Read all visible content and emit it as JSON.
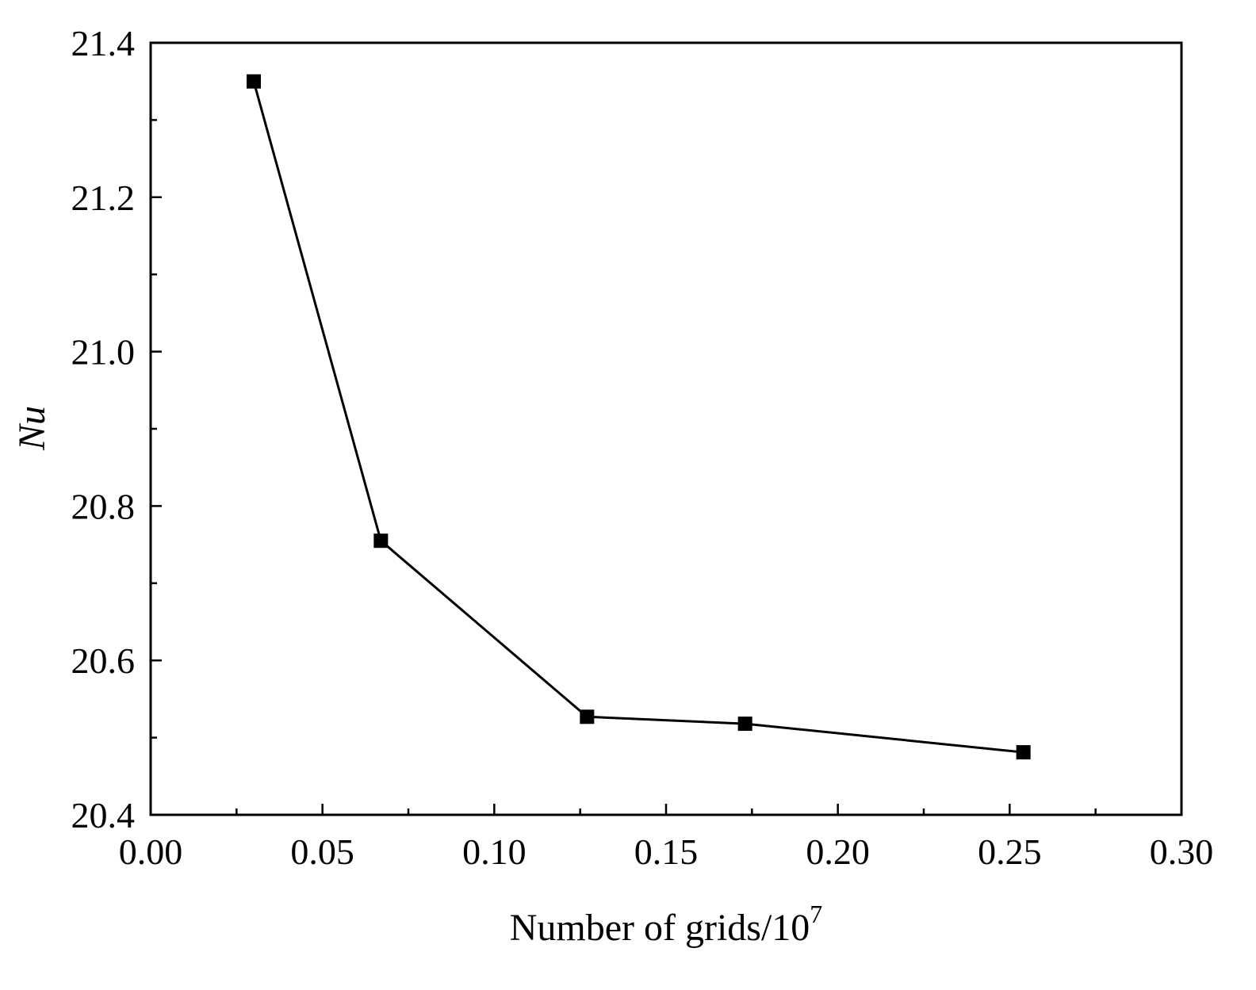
{
  "chart_data": {
    "type": "line",
    "title": "",
    "xlabel": "Number of grids/10",
    "xlabel_sup": "7",
    "ylabel": "Nu",
    "xlim": [
      0.0,
      0.3
    ],
    "ylim": [
      20.4,
      21.4
    ],
    "x_ticks": [
      "0.00",
      "0.05",
      "0.10",
      "0.15",
      "0.20",
      "0.25",
      "0.30"
    ],
    "y_ticks": [
      "20.4",
      "20.6",
      "20.8",
      "21.0",
      "21.2",
      "21.4"
    ],
    "grid": false,
    "marker": "square",
    "line_color": "#000000",
    "series": [
      {
        "x": [
          0.03,
          0.067,
          0.127,
          0.173,
          0.254
        ],
        "y": [
          21.35,
          20.755,
          20.527,
          20.518,
          20.481
        ]
      }
    ]
  }
}
